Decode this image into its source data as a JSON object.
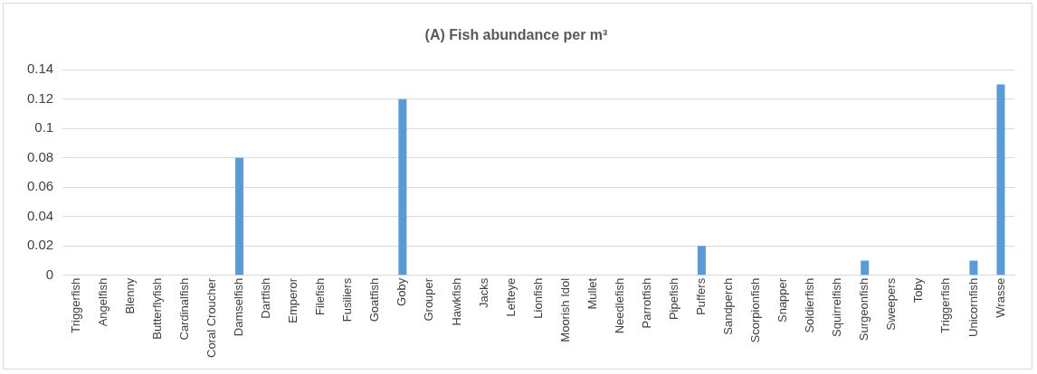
{
  "chart_data": {
    "type": "bar",
    "title": "(A) Fish abundance per m³",
    "categories": [
      "Triggerfish",
      "Angelfish",
      "Blenny",
      "Butterflyfish",
      "Cardinalfish",
      "Coral Croucher",
      "Damselfish",
      "Dartfish",
      "Emperor",
      "Filefish",
      "Fusiliers",
      "Goatfish",
      "Goby",
      "Grouper",
      "Hawkfish",
      "Jacks",
      "Lefteye",
      "Lionfish",
      "Moorish Idol",
      "Mullet",
      "Needlefish",
      "Parrotfish",
      "Pipefish",
      "Puffers",
      "Sandperch",
      "Scorpionfish",
      "Snapper",
      "Soldierfish",
      "Squirrelfish",
      "Surgeonfish",
      "Sweepers",
      "Toby",
      "Triggerfish",
      "Unicornfish",
      "Wrasse"
    ],
    "values": [
      0,
      0,
      0,
      0,
      0,
      0,
      0.08,
      0,
      0,
      0,
      0,
      0,
      0.12,
      0,
      0,
      0,
      0,
      0,
      0,
      0,
      0,
      0,
      0,
      0.02,
      0,
      0,
      0,
      0,
      0,
      0.01,
      0,
      0,
      0,
      0.01,
      0.13
    ],
    "color": "#5b9bd5",
    "ylim": [
      0,
      0.14
    ],
    "yticks": [
      0,
      0.02,
      0.04,
      0.06,
      0.08,
      0.1,
      0.12,
      0.14
    ],
    "grid": "y",
    "legend": false
  }
}
